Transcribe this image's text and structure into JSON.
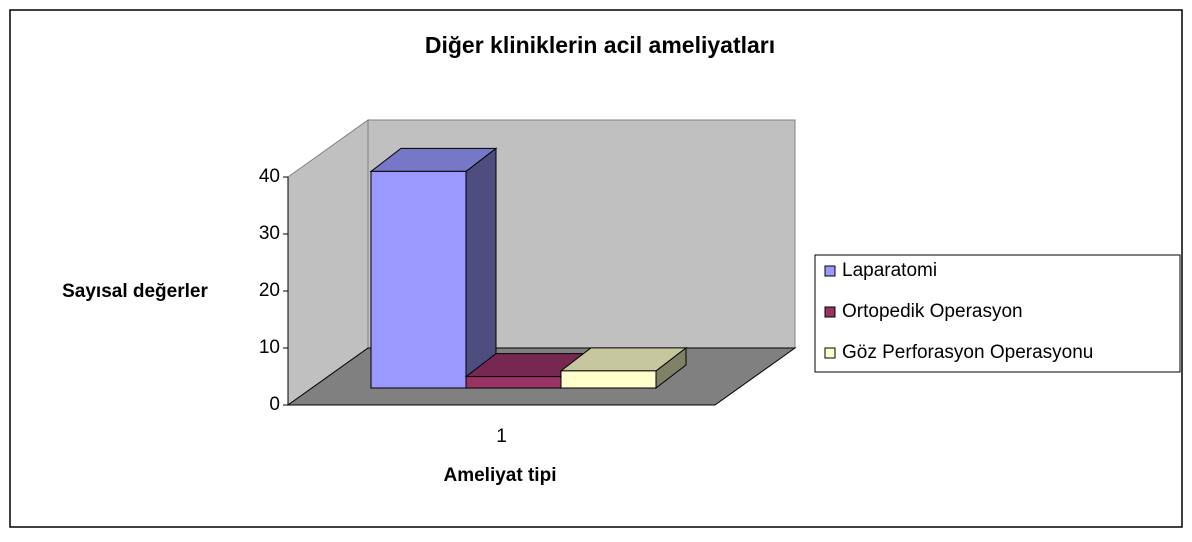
{
  "chart_data": {
    "type": "bar3d",
    "title": "Diğer kliniklerin acil ameliyatları",
    "x_label": "Ameliyat tipi",
    "y_label": "Sayısal değerler",
    "categories": [
      "1"
    ],
    "series": [
      {
        "name": "Laparatomi",
        "color": "#9999ff",
        "values": [
          38
        ]
      },
      {
        "name": "Ortopedik Operasyon",
        "color": "#993366",
        "values": [
          2
        ]
      },
      {
        "name": "Göz Perforasyon Operasyonu",
        "color": "#ffffcc",
        "values": [
          3
        ]
      }
    ],
    "ylim": [
      0,
      40
    ],
    "yticks": [
      0,
      10,
      20,
      30,
      40
    ],
    "grid": false,
    "legend": "right"
  }
}
